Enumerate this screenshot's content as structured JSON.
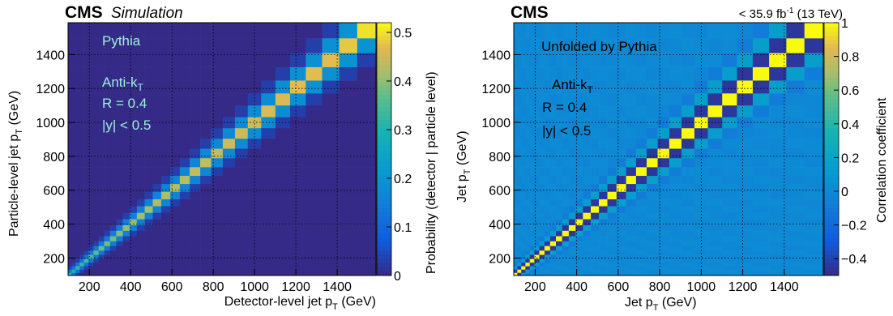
{
  "chart_data": [
    {
      "type": "heatmap",
      "experiment": "CMS",
      "tag": "Simulation",
      "lumi": "",
      "annotations": [
        "Pythia",
        "Anti-k",
        "T",
        "R = 0.4",
        "|y| < 0.5"
      ],
      "xlabel": "Detector-level jet p",
      "xlabel_sub": "T",
      "xlabel_unit": " (GeV)",
      "ylabel": "Particle-level jet p",
      "ylabel_sub": "T",
      "ylabel_unit": " (GeV)",
      "zlabel": "Probability (detector | particle level)",
      "xlim": [
        97,
        1588
      ],
      "ylim": [
        97,
        1588
      ],
      "zlim": [
        0,
        0.52
      ],
      "x_ticks": [
        "200",
        "400",
        "600",
        "800",
        "1000",
        "1200",
        "1400"
      ],
      "y_ticks": [
        "200",
        "400",
        "600",
        "800",
        "1000",
        "1200",
        "1400"
      ],
      "z_ticks": [
        "0",
        "0.1",
        "0.2",
        "0.3",
        "0.4",
        "0.5"
      ],
      "bin_edges": [
        97,
        114,
        133,
        153,
        174,
        196,
        220,
        245,
        272,
        300,
        330,
        362,
        395,
        430,
        468,
        507,
        548,
        592,
        638,
        686,
        737,
        790,
        846,
        905,
        967,
        1032,
        1101,
        1172,
        1248,
        1327,
        1410,
        1497,
        1588
      ],
      "diagonal_probability": [
        0.3,
        0.3,
        0.32,
        0.33,
        0.34,
        0.35,
        0.36,
        0.37,
        0.38,
        0.38,
        0.39,
        0.4,
        0.4,
        0.41,
        0.41,
        0.42,
        0.42,
        0.43,
        0.43,
        0.44,
        0.44,
        0.44,
        0.45,
        0.45,
        0.45,
        0.46,
        0.46,
        0.47,
        0.47,
        0.47,
        0.48,
        0.5
      ],
      "offdiag_probability": [
        0.12,
        0.03
      ]
    },
    {
      "type": "heatmap",
      "experiment": "CMS",
      "tag": "",
      "lumi": "< 35.9 fb",
      "lumi_sup": "-1",
      "lumi_energy": " (13 TeV)",
      "annotations": [
        "Unfolded by Pythia",
        "Anti-k",
        "T",
        "R = 0.4",
        "|y| < 0.5"
      ],
      "xlabel": "Jet p",
      "xlabel_sub": "T",
      "xlabel_unit": " (GeV)",
      "ylabel": "Jet p",
      "ylabel_sub": "T",
      "ylabel_unit": " (GeV)",
      "zlabel": "Correlation coefficient",
      "xlim": [
        97,
        1588
      ],
      "ylim": [
        97,
        1588
      ],
      "zlim": [
        -0.5,
        1.0
      ],
      "x_ticks": [
        "200",
        "400",
        "600",
        "800",
        "1000",
        "1200",
        "1400"
      ],
      "y_ticks": [
        "200",
        "400",
        "600",
        "800",
        "1000",
        "1200",
        "1400"
      ],
      "z_ticks": [
        "1",
        "0.8",
        "0.6",
        "0.4",
        "0.2",
        "0",
        "−0.2",
        "−0.4"
      ],
      "bin_edges": [
        97,
        114,
        133,
        153,
        174,
        196,
        220,
        245,
        272,
        300,
        330,
        362,
        395,
        430,
        468,
        507,
        548,
        592,
        638,
        686,
        737,
        790,
        846,
        905,
        967,
        1032,
        1101,
        1172,
        1248,
        1327,
        1410,
        1497,
        1588
      ],
      "diagonal_correlation": 1.0,
      "offdiag_correlation": [
        -0.45,
        0.15,
        -0.08
      ]
    }
  ]
}
